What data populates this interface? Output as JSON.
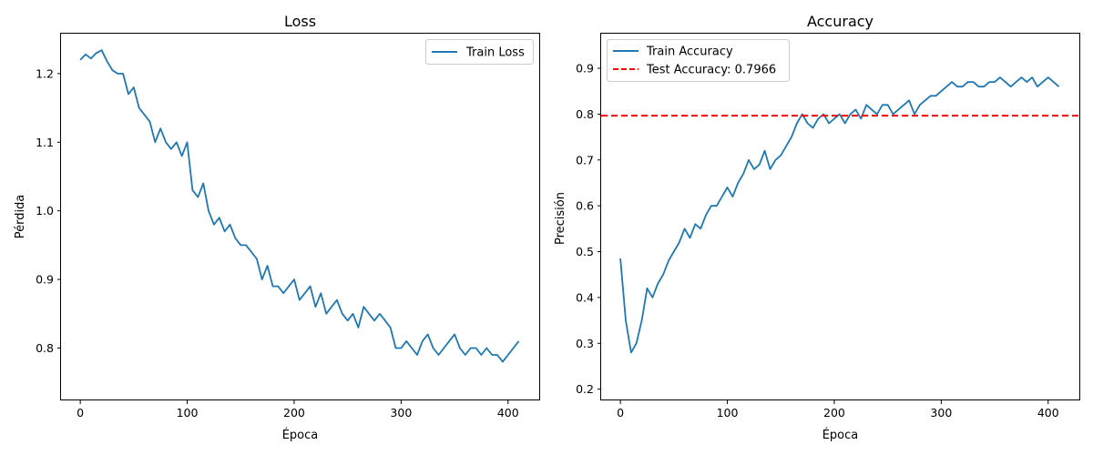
{
  "chart_data": [
    {
      "type": "line",
      "title": "Loss",
      "xlabel": "Época",
      "ylabel": "Pérdida",
      "xlim": [
        -18,
        430
      ],
      "ylim": [
        0.7237,
        1.2582
      ],
      "xticks": [
        0,
        100,
        200,
        300,
        400
      ],
      "yticks": [
        0.8,
        0.9,
        1.0,
        1.1,
        1.2
      ],
      "ytick_labels": [
        "0.8",
        "0.9",
        "1.0",
        "1.1",
        "1.2"
      ],
      "legend_position": "upper right",
      "grid": false,
      "series": [
        {
          "name": "Train Loss",
          "color": "#1f77b4",
          "style": "solid",
          "x": [
            0,
            5,
            10,
            15,
            20,
            25,
            30,
            35,
            40,
            45,
            50,
            55,
            60,
            65,
            70,
            75,
            80,
            85,
            90,
            95,
            100,
            105,
            110,
            115,
            120,
            125,
            130,
            135,
            140,
            145,
            150,
            155,
            160,
            165,
            170,
            175,
            180,
            185,
            190,
            195,
            200,
            205,
            210,
            215,
            220,
            225,
            230,
            235,
            240,
            245,
            250,
            255,
            260,
            265,
            270,
            275,
            280,
            285,
            290,
            295,
            300,
            305,
            310,
            315,
            320,
            325,
            330,
            335,
            340,
            345,
            350,
            355,
            360,
            365,
            370,
            375,
            380,
            385,
            390,
            395,
            400,
            405,
            410
          ],
          "values": [
            1.22,
            1.228,
            1.222,
            1.23,
            1.234,
            1.218,
            1.205,
            1.2,
            1.2,
            1.17,
            1.18,
            1.15,
            1.14,
            1.13,
            1.1,
            1.12,
            1.1,
            1.09,
            1.1,
            1.08,
            1.1,
            1.03,
            1.02,
            1.04,
            1.0,
            0.98,
            0.99,
            0.97,
            0.98,
            0.96,
            0.95,
            0.95,
            0.94,
            0.93,
            0.9,
            0.92,
            0.89,
            0.89,
            0.88,
            0.89,
            0.9,
            0.87,
            0.88,
            0.89,
            0.86,
            0.88,
            0.85,
            0.86,
            0.87,
            0.85,
            0.84,
            0.85,
            0.83,
            0.86,
            0.85,
            0.84,
            0.85,
            0.84,
            0.83,
            0.8,
            0.8,
            0.81,
            0.8,
            0.79,
            0.81,
            0.82,
            0.8,
            0.79,
            0.8,
            0.81,
            0.82,
            0.8,
            0.79,
            0.8,
            0.8,
            0.79,
            0.8,
            0.79,
            0.79,
            0.78,
            0.79,
            0.8,
            0.81
          ]
        }
      ]
    },
    {
      "type": "line",
      "title": "Accuracy",
      "xlabel": "Época",
      "ylabel": "Precisión",
      "xlim": [
        -18,
        430
      ],
      "ylim": [
        0.1755,
        0.9755
      ],
      "xticks": [
        0,
        100,
        200,
        300,
        400
      ],
      "yticks": [
        0.2,
        0.3,
        0.4,
        0.5,
        0.6,
        0.7,
        0.8,
        0.9
      ],
      "ytick_labels": [
        "0.2",
        "0.3",
        "0.4",
        "0.5",
        "0.6",
        "0.7",
        "0.8",
        "0.9"
      ],
      "legend_position": "upper left",
      "grid": false,
      "series": [
        {
          "name": "Train Accuracy",
          "color": "#1f77b4",
          "style": "solid",
          "x": [
            0,
            5,
            10,
            15,
            20,
            25,
            30,
            35,
            40,
            45,
            50,
            55,
            60,
            65,
            70,
            75,
            80,
            85,
            90,
            95,
            100,
            105,
            110,
            115,
            120,
            125,
            130,
            135,
            140,
            145,
            150,
            155,
            160,
            165,
            170,
            175,
            180,
            185,
            190,
            195,
            200,
            205,
            210,
            215,
            220,
            225,
            230,
            235,
            240,
            245,
            250,
            255,
            260,
            265,
            270,
            275,
            280,
            285,
            290,
            295,
            300,
            305,
            310,
            315,
            320,
            325,
            330,
            335,
            340,
            345,
            350,
            355,
            360,
            365,
            370,
            375,
            380,
            385,
            390,
            395,
            400,
            405,
            410
          ],
          "values": [
            0.485,
            0.35,
            0.28,
            0.3,
            0.35,
            0.42,
            0.4,
            0.43,
            0.45,
            0.48,
            0.5,
            0.52,
            0.55,
            0.53,
            0.56,
            0.55,
            0.58,
            0.6,
            0.6,
            0.62,
            0.64,
            0.62,
            0.65,
            0.67,
            0.7,
            0.68,
            0.69,
            0.72,
            0.68,
            0.7,
            0.71,
            0.73,
            0.75,
            0.78,
            0.8,
            0.78,
            0.77,
            0.79,
            0.8,
            0.78,
            0.79,
            0.8,
            0.78,
            0.8,
            0.81,
            0.79,
            0.82,
            0.81,
            0.8,
            0.82,
            0.82,
            0.8,
            0.81,
            0.82,
            0.83,
            0.8,
            0.82,
            0.83,
            0.84,
            0.84,
            0.85,
            0.86,
            0.87,
            0.86,
            0.86,
            0.87,
            0.87,
            0.86,
            0.86,
            0.87,
            0.87,
            0.88,
            0.87,
            0.86,
            0.87,
            0.88,
            0.87,
            0.88,
            0.86,
            0.87,
            0.88,
            0.87,
            0.86
          ]
        },
        {
          "name": "Test Accuracy: 0.7966",
          "color": "#ff0000",
          "style": "dashed",
          "type": "hline",
          "y": 0.7966
        }
      ]
    }
  ]
}
